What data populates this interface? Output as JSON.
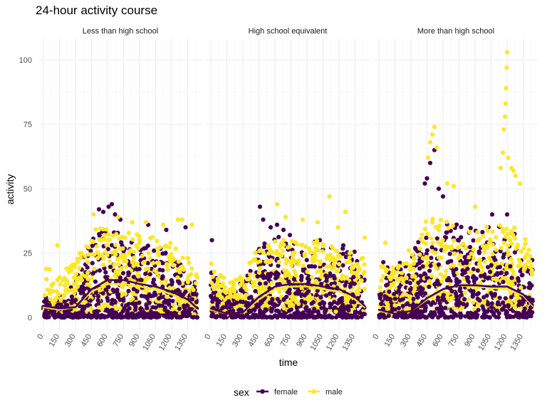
{
  "chart_data": {
    "type": "scatter",
    "title": "24-hour activity course",
    "xlabel": "time",
    "ylabel": "activity",
    "xlim": [
      0,
      1440
    ],
    "ylim": [
      0,
      105
    ],
    "x_ticks": [
      0,
      150,
      300,
      450,
      600,
      750,
      900,
      1050,
      1200,
      1350
    ],
    "y_ticks": [
      0,
      25,
      50,
      75,
      100
    ],
    "grid": true,
    "legend": {
      "title": "sex",
      "position": "bottom"
    },
    "colors": {
      "female": "#440154",
      "male": "#FDE725"
    },
    "facets": [
      {
        "label": "Less than high school",
        "series": [
          {
            "name": "female",
            "smooth": [
              [
                0,
                4.5
              ],
              [
                150,
                3.5
              ],
              [
                300,
                4
              ],
              [
                450,
                11
              ],
              [
                600,
                14.5
              ],
              [
                750,
                14.5
              ],
              [
                900,
                13
              ],
              [
                1050,
                12
              ],
              [
                1200,
                10
              ],
              [
                1350,
                7
              ],
              [
                1440,
                3.5
              ]
            ],
            "cloud": [
              [
                0,
                0,
                12
              ],
              [
                150,
                0,
                9
              ],
              [
                300,
                0,
                16
              ],
              [
                450,
                0,
                30
              ],
              [
                600,
                0,
                36
              ],
              [
                750,
                0,
                32
              ],
              [
                900,
                0,
                30
              ],
              [
                1050,
                0,
                28
              ],
              [
                1200,
                0,
                26
              ],
              [
                1350,
                0,
                20
              ],
              [
                1440,
                0,
                12
              ]
            ],
            "outliers": [
              [
                520,
                42
              ],
              [
                560,
                41
              ],
              [
                610,
                43
              ],
              [
                640,
                44
              ],
              [
                670,
                40
              ],
              [
                720,
                38
              ],
              [
                980,
                36
              ],
              [
                1150,
                34
              ],
              [
                1330,
                35
              ]
            ]
          },
          {
            "name": "male",
            "smooth": [
              [
                0,
                4
              ],
              [
                150,
                3
              ],
              [
                300,
                4
              ],
              [
                450,
                10
              ],
              [
                600,
                13
              ],
              [
                750,
                13
              ],
              [
                900,
                12
              ],
              [
                1050,
                11
              ],
              [
                1200,
                9
              ],
              [
                1350,
                6
              ],
              [
                1440,
                3
              ]
            ],
            "cloud": [
              [
                0,
                1,
                20
              ],
              [
                150,
                1,
                17
              ],
              [
                300,
                2,
                22
              ],
              [
                450,
                2,
                34
              ],
              [
                600,
                3,
                35
              ],
              [
                750,
                3,
                34
              ],
              [
                900,
                3,
                32
              ],
              [
                1050,
                2,
                31
              ],
              [
                1200,
                2,
                29
              ],
              [
                1350,
                1,
                24
              ],
              [
                1440,
                1,
                16
              ]
            ],
            "outliers": [
              [
                130,
                28
              ],
              [
                470,
                40
              ],
              [
                700,
                39
              ],
              [
                830,
                37
              ],
              [
                960,
                37
              ],
              [
                1120,
                36
              ],
              [
                1260,
                38
              ],
              [
                1300,
                38
              ],
              [
                1390,
                36
              ]
            ]
          }
        ]
      },
      {
        "label": "High school equivalent",
        "series": [
          {
            "name": "female",
            "smooth": [
              [
                0,
                3.5
              ],
              [
                150,
                1.5
              ],
              [
                300,
                2
              ],
              [
                450,
                8
              ],
              [
                600,
                12
              ],
              [
                750,
                13
              ],
              [
                900,
                13
              ],
              [
                1050,
                12
              ],
              [
                1200,
                11
              ],
              [
                1350,
                8
              ],
              [
                1440,
                4.5
              ]
            ],
            "cloud": [
              [
                0,
                0,
                20
              ],
              [
                150,
                0,
                10
              ],
              [
                300,
                0,
                14
              ],
              [
                450,
                0,
                28
              ],
              [
                600,
                0,
                32
              ],
              [
                750,
                0,
                31
              ],
              [
                900,
                0,
                30
              ],
              [
                1050,
                0,
                29
              ],
              [
                1200,
                0,
                28
              ],
              [
                1350,
                0,
                26
              ],
              [
                1440,
                0,
                18
              ]
            ],
            "outliers": [
              [
                10,
                30
              ],
              [
                460,
                43
              ],
              [
                490,
                38
              ],
              [
                560,
                35
              ],
              [
                620,
                36
              ],
              [
                680,
                34
              ],
              [
                740,
                32
              ],
              [
                1020,
                30
              ],
              [
                1240,
                28
              ]
            ]
          },
          {
            "name": "male",
            "smooth": [
              [
                0,
                3
              ],
              [
                150,
                1.5
              ],
              [
                300,
                2
              ],
              [
                450,
                7
              ],
              [
                600,
                11
              ],
              [
                750,
                12
              ],
              [
                900,
                12
              ],
              [
                1050,
                11
              ],
              [
                1200,
                10
              ],
              [
                1350,
                7
              ],
              [
                1440,
                4
              ]
            ],
            "cloud": [
              [
                0,
                1,
                22
              ],
              [
                150,
                0.5,
                14
              ],
              [
                300,
                1,
                17
              ],
              [
                450,
                2,
                28
              ],
              [
                600,
                3,
                31
              ],
              [
                750,
                3,
                30
              ],
              [
                900,
                3,
                29
              ],
              [
                1050,
                3,
                31
              ],
              [
                1200,
                2,
                28
              ],
              [
                1350,
                2,
                26
              ],
              [
                1440,
                1,
                24
              ]
            ],
            "outliers": [
              [
                620,
                44
              ],
              [
                700,
                39
              ],
              [
                860,
                38
              ],
              [
                1000,
                37
              ],
              [
                1110,
                47
              ],
              [
                1190,
                35
              ],
              [
                1260,
                41
              ],
              [
                1440,
                31
              ]
            ]
          }
        ]
      },
      {
        "label": "More than high school",
        "series": [
          {
            "name": "female",
            "smooth": [
              [
                0,
                3
              ],
              [
                150,
                1.5
              ],
              [
                300,
                2.5
              ],
              [
                450,
                7.5
              ],
              [
                600,
                11
              ],
              [
                750,
                12.5
              ],
              [
                900,
                12.5
              ],
              [
                1050,
                12
              ],
              [
                1200,
                12
              ],
              [
                1350,
                9
              ],
              [
                1440,
                5
              ]
            ],
            "cloud": [
              [
                0,
                0,
                24
              ],
              [
                150,
                0,
                20
              ],
              [
                300,
                0,
                25
              ],
              [
                450,
                0,
                38
              ],
              [
                600,
                0,
                37
              ],
              [
                750,
                0,
                36
              ],
              [
                900,
                0,
                35
              ],
              [
                1050,
                0,
                36
              ],
              [
                1200,
                0,
                35
              ],
              [
                1350,
                0,
                30
              ],
              [
                1440,
                0,
                22
              ]
            ],
            "outliers": [
              [
                430,
                52
              ],
              [
                450,
                54
              ],
              [
                480,
                60
              ],
              [
                520,
                65
              ],
              [
                560,
                50
              ],
              [
                600,
                47
              ],
              [
                1060,
                40
              ],
              [
                1200,
                40
              ]
            ]
          },
          {
            "name": "male",
            "smooth": [
              [
                0,
                2.5
              ],
              [
                150,
                1.5
              ],
              [
                300,
                2.5
              ],
              [
                450,
                7
              ],
              [
                600,
                11
              ],
              [
                750,
                12.5
              ],
              [
                900,
                12
              ],
              [
                1050,
                11.5
              ],
              [
                1200,
                11
              ],
              [
                1350,
                8.5
              ],
              [
                1440,
                4.5
              ]
            ],
            "cloud": [
              [
                0,
                1,
                22
              ],
              [
                150,
                1,
                20
              ],
              [
                300,
                2,
                24
              ],
              [
                450,
                3,
                40
              ],
              [
                600,
                3,
                38
              ],
              [
                750,
                3,
                36
              ],
              [
                900,
                3,
                34
              ],
              [
                1050,
                3,
                36
              ],
              [
                1200,
                4,
                38
              ],
              [
                1350,
                3,
                32
              ],
              [
                1440,
                1,
                25
              ]
            ],
            "outliers": [
              [
                60,
                29
              ],
              [
                280,
                26
              ],
              [
                460,
                62
              ],
              [
                480,
                68
              ],
              [
                500,
                71
              ],
              [
                520,
                74
              ],
              [
                540,
                66
              ],
              [
                640,
                52
              ],
              [
                700,
                51
              ],
              [
                900,
                43
              ],
              [
                1140,
                58
              ],
              [
                1160,
                64
              ],
              [
                1170,
                73
              ],
              [
                1180,
                78
              ],
              [
                1185,
                83
              ],
              [
                1190,
                89
              ],
              [
                1195,
                97
              ],
              [
                1200,
                103
              ],
              [
                1210,
                62
              ],
              [
                1240,
                58
              ],
              [
                1260,
                57
              ],
              [
                1280,
                55
              ],
              [
                1320,
                52
              ]
            ]
          }
        ]
      }
    ]
  }
}
